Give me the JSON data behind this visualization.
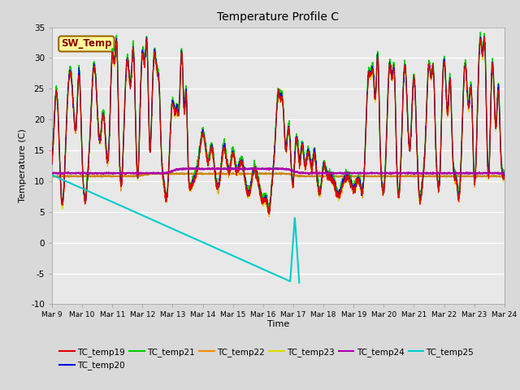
{
  "title": "Temperature Profile C",
  "xlabel": "Time",
  "ylabel": "Temperature (C)",
  "ylim": [
    -10,
    35
  ],
  "xlim": [
    0,
    15
  ],
  "sw_temp_label": "SW_Temp",
  "series_colors": {
    "TC_temp19": "#dd0000",
    "TC_temp20": "#0000dd",
    "TC_temp21": "#00cc00",
    "TC_temp22": "#ff8800",
    "TC_temp23": "#dddd00",
    "TC_temp24": "#aa00aa",
    "TC_temp25": "#00cccc"
  },
  "xtick_labels": [
    "Mar 9",
    "Mar 10",
    "Mar 11",
    "Mar 12",
    "Mar 13",
    "Mar 14",
    "Mar 15",
    "Mar 16",
    "Mar 17",
    "Mar 18",
    "Mar 19",
    "Mar 20",
    "Mar 21",
    "Mar 22",
    "Mar 23",
    "Mar 24"
  ],
  "ytick_values": [
    -10,
    -5,
    0,
    5,
    10,
    15,
    20,
    25,
    30,
    35
  ],
  "figure_bg": "#d9d9d9",
  "axes_bg": "#e8e8e8"
}
